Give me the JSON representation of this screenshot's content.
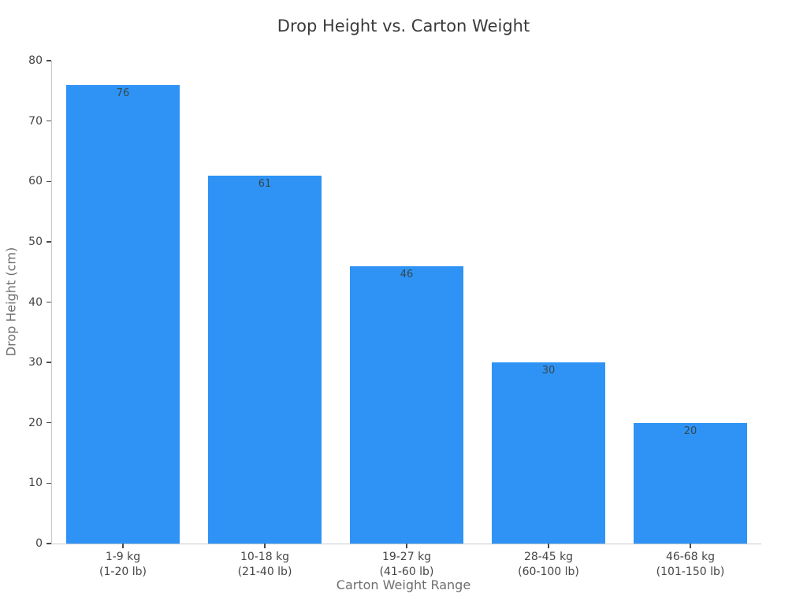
{
  "chart_data": {
    "type": "bar",
    "title": "Drop Height vs. Carton Weight",
    "xlabel": "Carton Weight Range",
    "ylabel": "Drop Height (cm)",
    "categories": [
      "1-9 kg\n(1-20 lb)",
      "10-18 kg\n(21-40 lb)",
      "19-27 kg\n(41-60 lb)",
      "28-45 kg\n(60-100 lb)",
      "46-68 kg\n(101-150 lb)"
    ],
    "values": [
      76,
      61,
      46,
      30,
      20
    ],
    "value_labels": [
      "76",
      "61",
      "46",
      "30",
      "20"
    ],
    "ylim": [
      0,
      80
    ],
    "ytick_step": 10,
    "ytick_labels": [
      "0",
      "10",
      "20",
      "30",
      "40",
      "50",
      "60",
      "70",
      "80"
    ],
    "bar_color": "#2E93F5",
    "value_label_color": "#37474f",
    "grid": false,
    "legend": null,
    "bar_width_fraction": 0.8
  }
}
